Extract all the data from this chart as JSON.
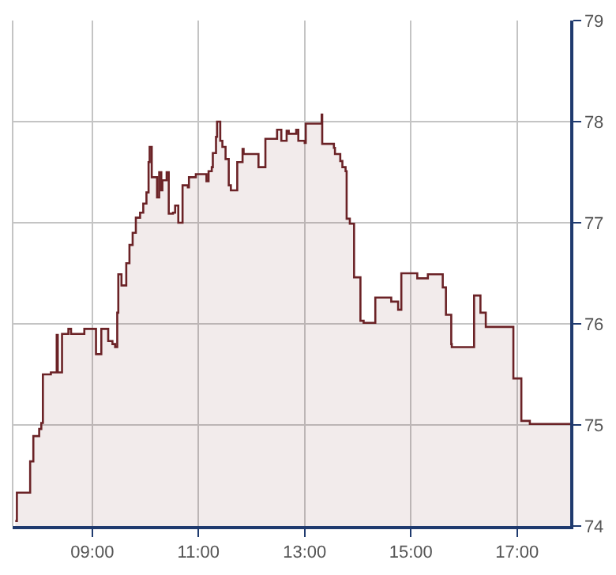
{
  "chart_data": {
    "type": "area",
    "series": [
      {
        "color": "#6b2226",
        "x": [
          7.55,
          7.58,
          7.58,
          7.83,
          7.83,
          7.89,
          7.89,
          8.0,
          8.0,
          8.04,
          8.04,
          8.07,
          8.07,
          8.22,
          8.22,
          8.33,
          8.33,
          8.35,
          8.35,
          8.43,
          8.43,
          8.55,
          8.55,
          8.6,
          8.6,
          8.85,
          8.85,
          9.07,
          9.07,
          9.17,
          9.17,
          9.3,
          9.3,
          9.38,
          9.38,
          9.43,
          9.43,
          9.47,
          9.47,
          9.49,
          9.49,
          9.55,
          9.55,
          9.64,
          9.64,
          9.7,
          9.7,
          9.76,
          9.76,
          9.82,
          9.82,
          9.9,
          9.9,
          9.96,
          9.96,
          10.02,
          10.02,
          10.06,
          10.06,
          10.08,
          10.08,
          10.12,
          10.12,
          10.22,
          10.22,
          10.26,
          10.26,
          10.3,
          10.3,
          10.32,
          10.32,
          10.4,
          10.4,
          10.44,
          10.44,
          10.52,
          10.52,
          10.56,
          10.56,
          10.62,
          10.62,
          10.7,
          10.7,
          10.8,
          10.8,
          10.82,
          10.82,
          10.95,
          10.95,
          11.15,
          11.15,
          11.19,
          11.19,
          11.25,
          11.25,
          11.27,
          11.27,
          11.33,
          11.33,
          11.35,
          11.35,
          11.41,
          11.41,
          11.45,
          11.45,
          11.51,
          11.51,
          11.57,
          11.57,
          11.61,
          11.61,
          11.73,
          11.73,
          11.83,
          11.83,
          11.85,
          11.85,
          12.13,
          12.13,
          12.26,
          12.26,
          12.48,
          12.48,
          12.56,
          12.56,
          12.66,
          12.66,
          12.7,
          12.7,
          12.84,
          12.84,
          12.88,
          12.88,
          13.0,
          13.0,
          13.02,
          13.02,
          13.32,
          13.32,
          13.33,
          13.33,
          13.55,
          13.55,
          13.57,
          13.57,
          13.67,
          13.67,
          13.71,
          13.71,
          13.77,
          13.77,
          13.79,
          13.79,
          13.85,
          13.85,
          13.93,
          13.93,
          14.05,
          14.05,
          14.11,
          14.11,
          14.33,
          14.33,
          14.63,
          14.63,
          14.76,
          14.76,
          14.82,
          14.82,
          15.12,
          15.12,
          15.32,
          15.32,
          15.6,
          15.6,
          15.66,
          15.66,
          15.76,
          15.76,
          15.77,
          15.77,
          16.19,
          16.19,
          16.31,
          16.31,
          16.41,
          16.41,
          16.93,
          16.93,
          17.08,
          17.08,
          17.24,
          17.24,
          18.0
        ],
        "values": [
          74.05,
          74.05,
          74.33,
          74.33,
          74.64,
          74.64,
          74.89,
          74.89,
          74.96,
          74.96,
          75.02,
          75.02,
          75.5,
          75.5,
          75.52,
          75.52,
          75.89,
          75.89,
          75.52,
          75.52,
          75.9,
          75.9,
          75.95,
          75.95,
          75.9,
          75.9,
          75.95,
          75.95,
          75.7,
          75.7,
          75.95,
          75.95,
          75.83,
          75.83,
          75.8,
          75.8,
          75.77,
          75.77,
          76.11,
          76.11,
          76.49,
          76.49,
          76.38,
          76.38,
          76.6,
          76.6,
          76.78,
          76.78,
          76.9,
          76.9,
          77.05,
          77.05,
          77.1,
          77.1,
          77.19,
          77.19,
          77.3,
          77.3,
          77.6,
          77.6,
          77.75,
          77.75,
          77.45,
          77.45,
          77.25,
          77.25,
          77.5,
          77.5,
          77.32,
          77.32,
          77.42,
          77.42,
          77.5,
          77.5,
          77.09,
          77.09,
          77.1,
          77.1,
          77.17,
          77.17,
          77.0,
          77.0,
          77.37,
          77.37,
          77.35,
          77.35,
          77.45,
          77.45,
          77.48,
          77.48,
          77.41,
          77.41,
          77.51,
          77.51,
          77.55,
          77.55,
          77.69,
          77.69,
          77.85,
          77.85,
          78.0,
          78.0,
          77.81,
          77.81,
          77.75,
          77.75,
          77.63,
          77.63,
          77.37,
          77.37,
          77.32,
          77.32,
          77.6,
          77.6,
          77.73,
          77.73,
          77.68,
          77.68,
          77.55,
          77.55,
          77.83,
          77.83,
          77.92,
          77.92,
          77.81,
          77.81,
          77.91,
          77.91,
          77.88,
          77.88,
          77.92,
          77.92,
          77.81,
          77.81,
          77.79,
          77.79,
          77.98,
          77.98,
          78.07,
          78.07,
          77.78,
          77.78,
          77.74,
          77.74,
          77.68,
          77.68,
          77.61,
          77.61,
          77.55,
          77.55,
          77.51,
          77.51,
          77.04,
          77.04,
          76.99,
          76.99,
          76.46,
          76.46,
          76.03,
          76.03,
          76.01,
          76.01,
          76.26,
          76.26,
          76.22,
          76.22,
          76.14,
          76.14,
          76.5,
          76.5,
          76.45,
          76.45,
          76.49,
          76.49,
          76.36,
          76.36,
          76.09,
          76.09,
          75.8,
          75.8,
          75.77,
          75.77,
          76.28,
          76.28,
          76.11,
          76.11,
          75.97,
          75.97,
          75.46,
          75.46,
          75.04,
          75.04,
          75.01,
          75.01
        ]
      }
    ],
    "xlim": [
      7.5,
      18.0
    ],
    "xticks": [
      {
        "value": 9,
        "label": "09:00"
      },
      {
        "value": 11,
        "label": "11:00"
      },
      {
        "value": 13,
        "label": "13:00"
      },
      {
        "value": 15,
        "label": "15:00"
      },
      {
        "value": 17,
        "label": "17:00"
      }
    ],
    "ylim": [
      74,
      79
    ],
    "yticks": [
      74,
      75,
      76,
      77,
      78,
      79
    ],
    "grid": true
  }
}
